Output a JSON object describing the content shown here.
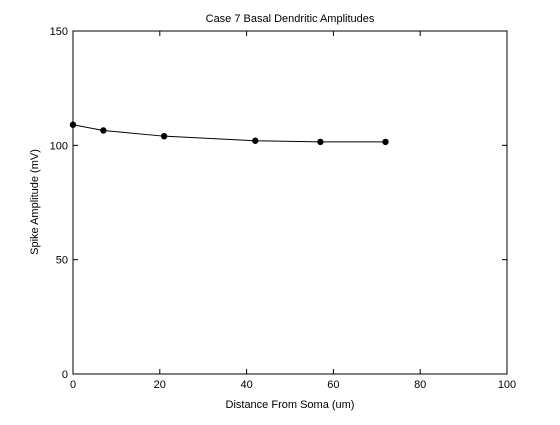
{
  "chart_data": {
    "type": "line",
    "title": "Case 7 Basal Dendritic Amplitudes",
    "xlabel": "Distance From Soma (um)",
    "ylabel": "Spike Amplitude (mV)",
    "xlim": [
      0,
      100
    ],
    "ylim": [
      0,
      150
    ],
    "xticks": [
      0,
      20,
      40,
      60,
      80,
      100
    ],
    "yticks": [
      0,
      50,
      100,
      150
    ],
    "grid": false,
    "series": [
      {
        "x": [
          0,
          7,
          21,
          42,
          57,
          72
        ],
        "y": [
          109,
          106.5,
          104,
          102,
          101.5,
          101.5
        ],
        "color": "#000000",
        "marker": "filled-circle"
      }
    ]
  }
}
